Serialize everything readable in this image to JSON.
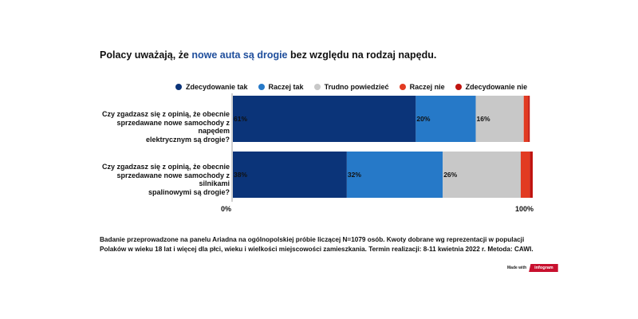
{
  "title": {
    "part1": "Polacy uważają, że ",
    "accent": "nowe auta są drogie",
    "part2": " bez względu na rodzaj napędu."
  },
  "colors": {
    "accent": "#1f4e9c",
    "series": [
      "#0b3479",
      "#2679c8",
      "#c8c8c8",
      "#e23b22",
      "#c0140f"
    ]
  },
  "chart_data": {
    "type": "bar",
    "orientation": "horizontal",
    "stacked": true,
    "categories": [
      "Czy zgadzasz się z opinią, że obecnie sprzedawane nowe samochody z napędem elektrycznym są drogie?",
      "Czy zgadzasz się z opinią, że obecnie sprzedawane nowe samochody z silnikami spalinowymi są drogie?"
    ],
    "category_lines": [
      [
        "Czy zgadzasz się z opinią, że obecnie",
        "sprzedawane nowe samochody z napędem",
        "elektrycznym są drogie?"
      ],
      [
        "Czy zgadzasz się z opinią, że obecnie",
        "sprzedawane nowe samochody z silnikami",
        "spalinowymi są drogie?"
      ]
    ],
    "series": [
      {
        "name": "Zdecydowanie tak",
        "values": [
          61,
          38
        ],
        "labels": [
          "61%",
          "38%"
        ]
      },
      {
        "name": "Raczej tak",
        "values": [
          20,
          32
        ],
        "labels": [
          "20%",
          "32%"
        ]
      },
      {
        "name": "Trudno powiedzieć",
        "values": [
          16,
          26
        ],
        "labels": [
          "16%",
          "26%"
        ]
      },
      {
        "name": "Raczej nie",
        "values": [
          1.5,
          3
        ],
        "labels": [
          "",
          ""
        ]
      },
      {
        "name": "Zdecydowanie nie",
        "values": [
          0.5,
          1
        ],
        "labels": [
          "",
          ""
        ]
      }
    ],
    "xlim": [
      0,
      100
    ],
    "tick_labels": [
      "0%",
      "100%"
    ],
    "legend_position": "top",
    "grid": false
  },
  "footnote": "Badanie przeprowadzone na panelu Ariadna na ogólnopolskiej próbie liczącej N=1079 osób. Kwoty dobrane wg reprezentacji w populacji Polaków w wieku 18 lat i więcej dla płci, wieku i wielkości miejscowości zamieszkania. Termin realizacji:  8-11 kwietnia 2022 r. Metoda: CAWI.",
  "badge": {
    "made_with": "Made with",
    "brand": "infogram"
  }
}
